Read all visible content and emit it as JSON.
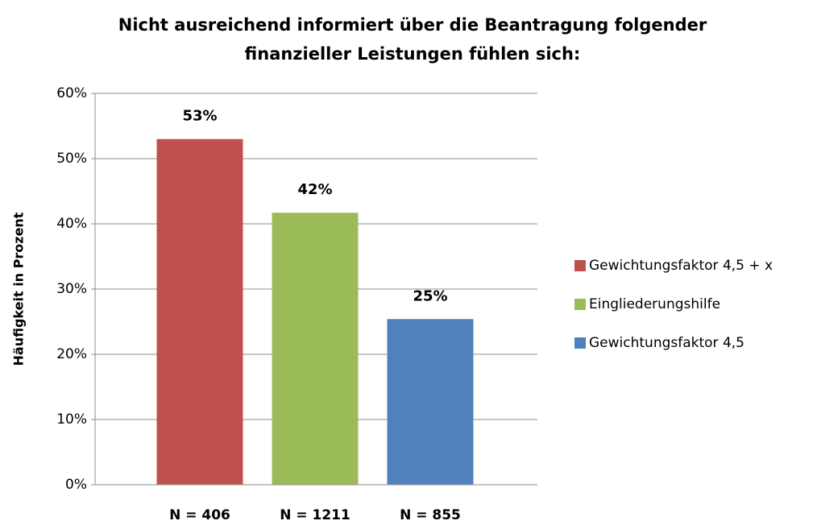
{
  "chart_data": {
    "type": "bar",
    "title": [
      "Nicht ausreichend informiert über die Beantragung folgender",
      "finanzieller Leistungen fühlen sich:"
    ],
    "ylabel": "Häufigkeit in Prozent",
    "categories": [
      "N = 406",
      "N = 1211",
      "N = 855"
    ],
    "series": [
      {
        "name": "Gewichtungsfaktor 4,5 + x",
        "color": "#c0504d",
        "values": [
          53,
          null,
          null
        ],
        "value_labels": [
          "53%",
          null,
          null
        ]
      },
      {
        "name": "Eingliederungshilfe",
        "color": "#9bbb59",
        "values": [
          null,
          41.7,
          null
        ],
        "value_labels": [
          null,
          "42%",
          null
        ]
      },
      {
        "name": "Gewichtungsfaktor 4,5",
        "color": "#4f81bd",
        "values": [
          null,
          null,
          25.4
        ],
        "value_labels": [
          null,
          null,
          "25%"
        ]
      }
    ],
    "ylim": [
      0,
      60
    ],
    "yticks": [
      {
        "value": 0,
        "label": "0%"
      },
      {
        "value": 10,
        "label": "10%"
      },
      {
        "value": 20,
        "label": "20%"
      },
      {
        "value": 30,
        "label": "30%"
      },
      {
        "value": 40,
        "label": "40%"
      },
      {
        "value": 50,
        "label": "50%"
      },
      {
        "value": 60,
        "label": "60%"
      }
    ],
    "grid": true,
    "legend": "right"
  }
}
